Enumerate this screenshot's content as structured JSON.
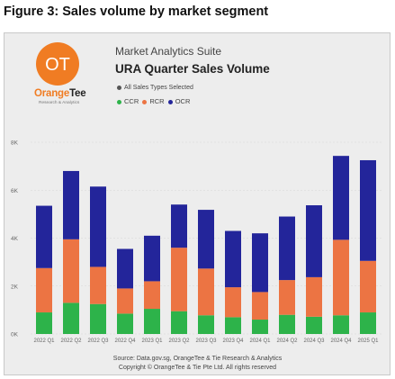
{
  "figure_title": "Figure 3: Sales volume by market segment",
  "brand": {
    "name_part1": "Orange",
    "name_part2": "Tee",
    "subtitle": "Research & Analytics",
    "logo_text": "OT"
  },
  "report": {
    "suite": "Market Analytics Suite",
    "title": "URA Quarter Sales Volume"
  },
  "legend": {
    "filter_label": "All Sales Types Selected",
    "filter_color": "#555555",
    "items": [
      {
        "label": "CCR",
        "color": "#2db34a"
      },
      {
        "label": "RCR",
        "color": "#ec7443"
      },
      {
        "label": "OCR",
        "color": "#23259a"
      }
    ]
  },
  "chart_data": {
    "type": "bar",
    "stacked": true,
    "categories": [
      "2022 Q1",
      "2022 Q2",
      "2022 Q3",
      "2022 Q4",
      "2023 Q1",
      "2023 Q2",
      "2023 Q3",
      "2023 Q4",
      "2024 Q1",
      "2024 Q2",
      "2024 Q3",
      "2024 Q4",
      "2025 Q1"
    ],
    "series": [
      {
        "name": "CCR",
        "color": "#2db34a",
        "values": [
          900,
          1300,
          1250,
          850,
          1050,
          950,
          780,
          700,
          600,
          800,
          720,
          780,
          900
        ]
      },
      {
        "name": "RCR",
        "color": "#ec7443",
        "values": [
          1850,
          2650,
          1550,
          1050,
          1150,
          2650,
          1950,
          1250,
          1150,
          1450,
          1650,
          3150,
          2150
        ]
      },
      {
        "name": "OCR",
        "color": "#23259a",
        "values": [
          2600,
          2850,
          3350,
          1650,
          1900,
          1800,
          2450,
          2350,
          2450,
          2650,
          3000,
          3500,
          4200
        ]
      }
    ],
    "ytick_labels": [
      "0K",
      "2K",
      "4K",
      "6K",
      "8K"
    ],
    "ylim": [
      0,
      8000
    ],
    "grid": true,
    "legend_position": "top-left"
  },
  "source": {
    "line1": "Source: Data.gov.sg, OrangeTee & Tie Research & Analytics",
    "line2": "Copyright © OrangeTee & Tie Pte Ltd. All rights reserved"
  }
}
